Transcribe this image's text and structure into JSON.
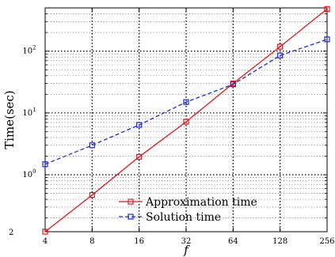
{
  "chart_data": {
    "type": "line",
    "xlabel": "f",
    "ylabel": "Time(sec)",
    "x_scale": "log2",
    "y_scale": "log10",
    "x": [
      4,
      8,
      16,
      32,
      64,
      128,
      256
    ],
    "x_tick_labels": [
      "4",
      "8",
      "16",
      "32",
      "64",
      "128",
      "256"
    ],
    "xlim": [
      4,
      256
    ],
    "ylim": [
      0.12,
      500
    ],
    "y_ticks": [
      {
        "base": "10",
        "exp": "0"
      },
      {
        "base": "10",
        "exp": "1"
      },
      {
        "base": "10",
        "exp": "2"
      }
    ],
    "y_edge_label": "2",
    "grid": true,
    "legend_position": "bottom-center",
    "series": [
      {
        "name": "Approximation time",
        "color": "#e8141a",
        "line_style": "solid",
        "marker": "square",
        "values": [
          0.12,
          0.47,
          1.95,
          7.2,
          30,
          118,
          480
        ]
      },
      {
        "name": "Solution time",
        "color": "#1f2bd9",
        "line_style": "dashed",
        "marker": "square",
        "values": [
          1.48,
          3.0,
          6.4,
          15,
          29,
          85,
          155
        ]
      }
    ]
  }
}
